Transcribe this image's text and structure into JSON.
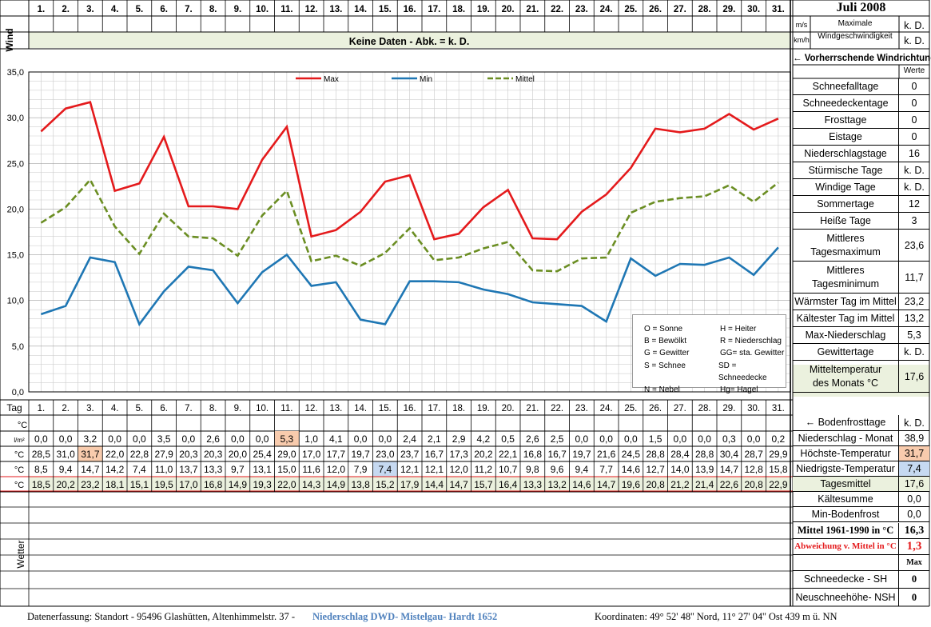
{
  "days": [
    "1.",
    "2.",
    "3.",
    "4.",
    "5.",
    "6.",
    "7.",
    "8.",
    "9.",
    "10.",
    "11.",
    "12.",
    "13.",
    "14.",
    "15.",
    "16.",
    "17.",
    "18.",
    "19.",
    "20.",
    "21.",
    "22.",
    "23.",
    "24.",
    "25.",
    "26.",
    "27.",
    "28.",
    "29.",
    "30.",
    "31."
  ],
  "header": {
    "title": "Juli 2008",
    "wind_label": "Wind",
    "units_ms": "m/s",
    "units_kmh": "km/h",
    "max_wind_label_1": "Maximale",
    "max_wind_label_2": "Windgeschwindigkeit",
    "kd1": "k. D.",
    "kd2": "k. D.",
    "no_data": "Keine Daten - Abk. = k. D.",
    "prevailing": "← Vorherrschende Windrichtung"
  },
  "chart_data": {
    "type": "line",
    "title": "",
    "xlabel": "",
    "ylabel": "",
    "categories": [
      "1.",
      "2.",
      "3.",
      "4.",
      "5.",
      "6.",
      "7.",
      "8.",
      "9.",
      "10.",
      "11.",
      "12.",
      "13.",
      "14.",
      "15.",
      "16.",
      "17.",
      "18.",
      "19.",
      "20.",
      "21.",
      "22.",
      "23.",
      "24.",
      "25.",
      "26.",
      "27.",
      "28.",
      "29.",
      "30.",
      "31."
    ],
    "ylim": [
      0,
      35
    ],
    "yticks": [
      "0,0",
      "5,0",
      "10,0",
      "15,0",
      "20,0",
      "25,0",
      "30,0",
      "35,0"
    ],
    "grid": true,
    "legend_position": "top",
    "series": [
      {
        "name": "Max",
        "color": "#e41a1c",
        "dash": false,
        "values": [
          28.5,
          31.0,
          31.7,
          22.0,
          22.8,
          27.9,
          20.3,
          20.3,
          20.0,
          25.4,
          29.0,
          17.0,
          17.7,
          19.7,
          23.0,
          23.7,
          16.7,
          17.3,
          20.2,
          22.1,
          16.8,
          16.7,
          19.7,
          21.6,
          24.5,
          28.8,
          28.4,
          28.8,
          30.4,
          28.7,
          29.9
        ]
      },
      {
        "name": "Min",
        "color": "#1f77b4",
        "dash": false,
        "values": [
          8.5,
          9.4,
          14.7,
          14.2,
          7.4,
          11.0,
          13.7,
          13.3,
          9.7,
          13.1,
          15.0,
          11.6,
          12.0,
          7.9,
          7.4,
          12.1,
          12.1,
          12.0,
          11.2,
          10.7,
          9.8,
          9.6,
          9.4,
          7.7,
          14.6,
          12.7,
          14.0,
          13.9,
          14.7,
          12.8,
          15.8
        ]
      },
      {
        "name": "Mittel",
        "color": "#6b8e23",
        "dash": true,
        "values": [
          18.5,
          20.2,
          23.2,
          18.1,
          15.1,
          19.5,
          17.0,
          16.8,
          14.9,
          19.3,
          22.0,
          14.3,
          14.9,
          13.8,
          15.2,
          17.9,
          14.4,
          14.7,
          15.7,
          16.4,
          13.3,
          13.2,
          14.6,
          14.7,
          19.6,
          20.8,
          21.2,
          21.4,
          22.6,
          20.8,
          22.9
        ]
      }
    ]
  },
  "legend_box": [
    [
      "O = Sonne",
      "H = Heiter"
    ],
    [
      "B = Bewölkt",
      "R = Niederschlag"
    ],
    [
      "G = Gewitter",
      "GG= sta. Gewitter"
    ],
    [
      "S = Schnee",
      "SD = Schneedecke"
    ],
    [
      "N = Nebel",
      "Hg= Hagel"
    ]
  ],
  "table": {
    "tag_label": "Tag",
    "rows": [
      {
        "unit": "l/m²",
        "values": [
          "0,0",
          "0,0",
          "3,2",
          "0,0",
          "0,0",
          "3,5",
          "0,0",
          "2,6",
          "0,0",
          "0,0",
          "5,3",
          "1,0",
          "4,1",
          "0,0",
          "0,0",
          "2,4",
          "2,1",
          "2,9",
          "4,2",
          "0,5",
          "2,6",
          "2,5",
          "0,0",
          "0,0",
          "0,0",
          "1,5",
          "0,0",
          "0,0",
          "0,3",
          "0,0",
          "0,2"
        ]
      },
      {
        "unit": "°C",
        "values": [
          "28,5",
          "31,0",
          "31,7",
          "22,0",
          "22,8",
          "27,9",
          "20,3",
          "20,3",
          "20,0",
          "25,4",
          "29,0",
          "17,0",
          "17,7",
          "19,7",
          "23,0",
          "23,7",
          "16,7",
          "17,3",
          "20,2",
          "22,1",
          "16,8",
          "16,7",
          "19,7",
          "21,6",
          "24,5",
          "28,8",
          "28,4",
          "28,8",
          "30,4",
          "28,7",
          "29,9"
        ]
      },
      {
        "unit": "°C",
        "values": [
          "8,5",
          "9,4",
          "14,7",
          "14,2",
          "7,4",
          "11,0",
          "13,7",
          "13,3",
          "9,7",
          "13,1",
          "15,0",
          "11,6",
          "12,0",
          "7,9",
          "7,4",
          "12,1",
          "12,1",
          "12,0",
          "11,2",
          "10,7",
          "9,8",
          "9,6",
          "9,4",
          "7,7",
          "14,6",
          "12,7",
          "14,0",
          "13,9",
          "14,7",
          "12,8",
          "15,8"
        ]
      },
      {
        "unit": "°C",
        "values": [
          "18,5",
          "20,2",
          "23,2",
          "18,1",
          "15,1",
          "19,5",
          "17,0",
          "16,8",
          "14,9",
          "19,3",
          "22,0",
          "14,3",
          "14,9",
          "13,8",
          "15,2",
          "17,9",
          "14,4",
          "14,7",
          "15,7",
          "16,4",
          "13,3",
          "13,2",
          "14,6",
          "14,7",
          "19,6",
          "20,8",
          "21,2",
          "21,4",
          "22,6",
          "20,8",
          "22,9"
        ]
      }
    ],
    "frost_unit": "°C",
    "wetter_label": "Wetter",
    "highlight_colors": {
      "max_cell": "#f8cbad",
      "min_cell": "#c6d9f1",
      "mean_row": "#ebf1de",
      "info_bar": "#ebf1de"
    }
  },
  "stats_top": {
    "werte": "Werte",
    "items": [
      {
        "label": "Schneefalltage",
        "value": "0"
      },
      {
        "label": "Schneedeckentage",
        "value": "0"
      },
      {
        "label": "Frosttage",
        "value": "0"
      },
      {
        "label": "Eistage",
        "value": "0"
      },
      {
        "label": "Niederschlagstage",
        "value": "16"
      },
      {
        "label": "Stürmische Tage",
        "value": "k. D."
      },
      {
        "label": "Windige Tage",
        "value": "k. D."
      },
      {
        "label": "Sommertage",
        "value": "12"
      },
      {
        "label": "Heiße Tage",
        "value": "3"
      },
      {
        "label": "Mittleres Tagesmaximum",
        "value": "23,6"
      },
      {
        "label": "Mittleres Tagesminimum",
        "value": "11,7"
      },
      {
        "label": "Wärmster Tag im Mittel",
        "value": "23,2"
      },
      {
        "label": "Kältester Tag im Mittel",
        "value": "13,2"
      },
      {
        "label": "Max-Niederschlag",
        "value": "5,3"
      },
      {
        "label": "Gewittertage",
        "value": "k. D."
      },
      {
        "label": "Mitteltemperatur des Monats °C",
        "value": "17,6"
      }
    ]
  },
  "stats_bottom": {
    "bodenfrost": {
      "label": "← Bodenfrosttage",
      "value": "k. D."
    },
    "items": [
      {
        "label": "Niederschlag - Monat",
        "value": "38,9"
      },
      {
        "label": "Höchste-Temperatur",
        "value": "31,7"
      },
      {
        "label": "Niedrigste-Temperatur",
        "value": "7,4"
      },
      {
        "label": "Tagesmittel",
        "value": "17,6"
      },
      {
        "label": "Kältesumme",
        "value": "0,0"
      },
      {
        "label": "Min-Bodenfrost",
        "value": "0,0"
      },
      {
        "label": "Mittel 1961-1990 in °C",
        "value": "16,3"
      },
      {
        "label": "Abweichung v. Mittel in °C",
        "value": "1,3"
      }
    ],
    "max_label": "Max",
    "schnee": [
      {
        "label": "Schneedecke - SH",
        "value": "0"
      },
      {
        "label": "Neuschneehöhe- NSH",
        "value": "0"
      }
    ]
  },
  "footer": {
    "part1": "Datenerfassung:  Standort -  95496  Glashütten, Altenhimmelstr. 37 - ",
    "part2": "Niederschlag DWD- Mistelgau- Hardt 1652",
    "part3": "Koordinaten:  49° 52' 48'' Nord,    11° 27' 04'' Ost    439 m ü. NN"
  }
}
